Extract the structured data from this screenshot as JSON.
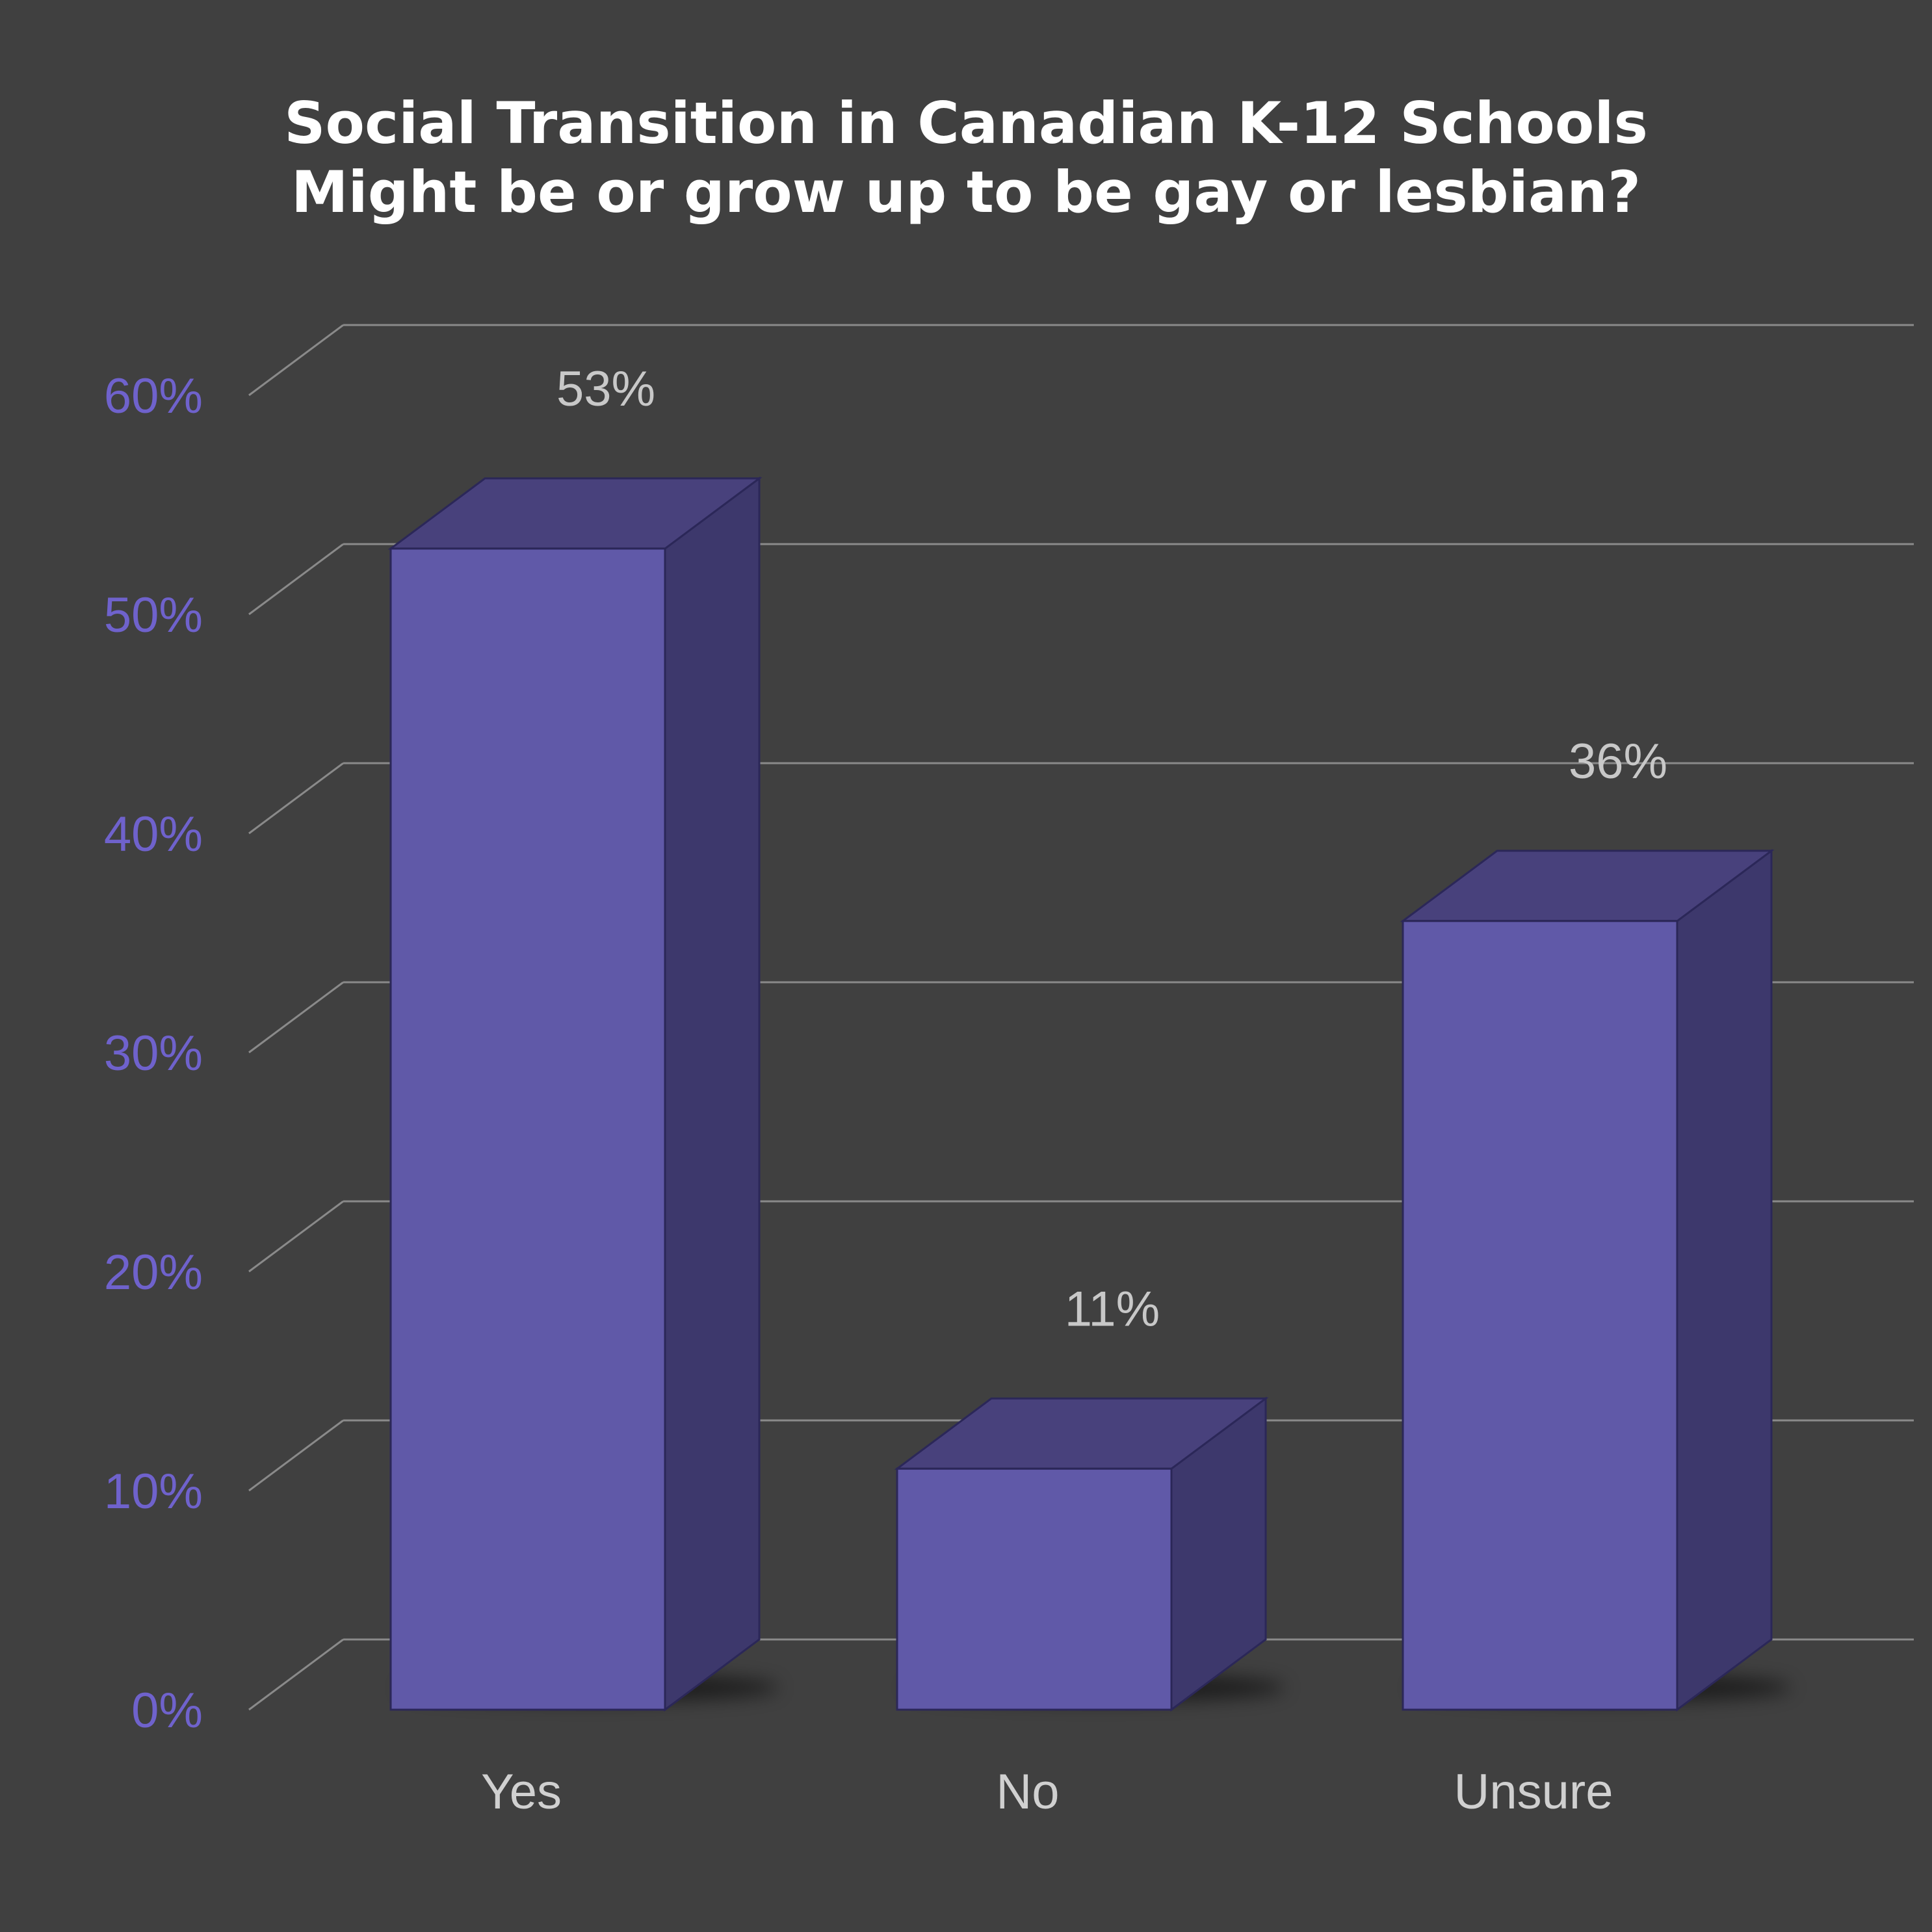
{
  "chart_data": {
    "type": "bar",
    "title": "Social Transition in Canadian K-12 Schools",
    "subtitle": "Might be or grow up to be gay or lesbian?",
    "categories": [
      "Yes",
      "No",
      "Unsure"
    ],
    "values": [
      53,
      11,
      36
    ],
    "data_labels": [
      "53%",
      "11%",
      "36%"
    ],
    "y_ticks": [
      0,
      10,
      20,
      30,
      40,
      50,
      60
    ],
    "y_tick_labels": [
      "0%",
      "10%",
      "20%",
      "30%",
      "40%",
      "50%",
      "60%"
    ],
    "ylim": [
      0,
      65
    ],
    "xlabel": "",
    "ylabel": "",
    "grid": true,
    "legend": "none",
    "style": "3d",
    "colors": {
      "background": "#404040",
      "bar_front": "#6059a8",
      "bar_side": "#3d386c",
      "bar_top": "#48417c",
      "bar_edge": "#2b2758",
      "gridline": "#8a8a8a",
      "y_tick_text": "#6f62cc",
      "x_tick_text": "#d0d0d0",
      "data_label_text": "#c8c8c8",
      "title_text": "#ffffff"
    }
  }
}
